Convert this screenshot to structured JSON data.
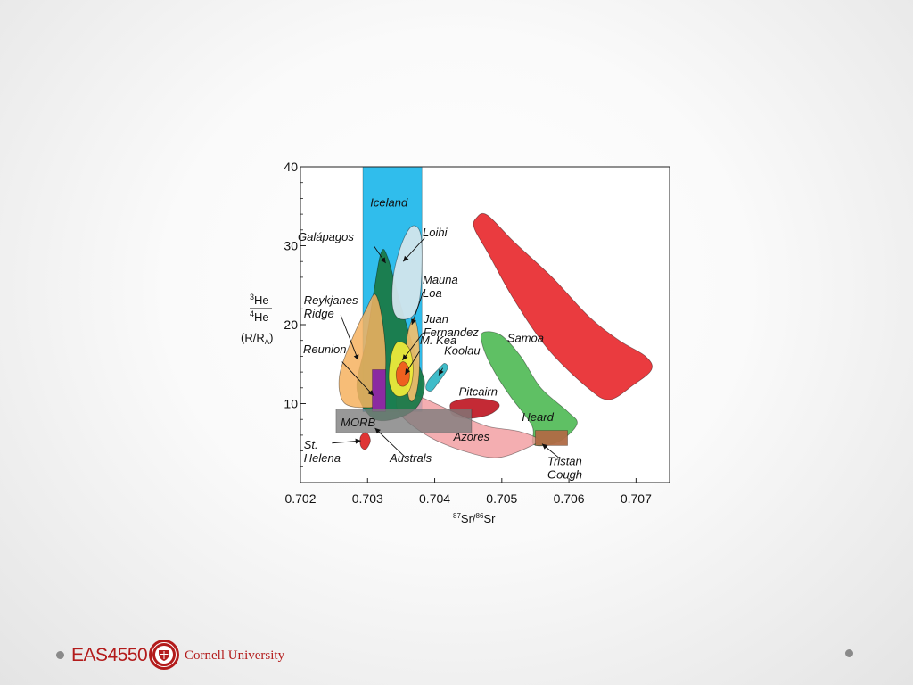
{
  "chart_data": {
    "type": "scatter",
    "title": "",
    "xlabel": "87Sr/86Sr",
    "xlabel_parts": {
      "sup1": "87",
      "base1": "Sr/",
      "sup2": "86",
      "base2": "Sr"
    },
    "ylabel_parts": {
      "num_sup": "3",
      "num": "He",
      "den_sup": "4",
      "den": "He",
      "unit": "(R/R",
      "unit_sub": "A",
      "unit_end": ")"
    },
    "xlim": [
      0.702,
      0.7075
    ],
    "ylim": [
      0,
      40
    ],
    "x_ticks": [
      {
        "value": 0.702,
        "label": "0.702"
      },
      {
        "value": 0.703,
        "label": "0.703"
      },
      {
        "value": 0.704,
        "label": "0.704"
      },
      {
        "value": 0.705,
        "label": "0.705"
      },
      {
        "value": 0.706,
        "label": "0.706"
      },
      {
        "value": 0.707,
        "label": "0.707"
      }
    ],
    "y_ticks": [
      {
        "value": 10,
        "label": "10"
      },
      {
        "value": 20,
        "label": "20"
      },
      {
        "value": 30,
        "label": "30"
      },
      {
        "value": 40,
        "label": "40"
      }
    ],
    "fields": [
      {
        "name": "Iceland",
        "shape": "rect",
        "color": "#1ab6ea",
        "opacity": 0.9,
        "x": [
          0.70293,
          0.70381
        ],
        "y": [
          9,
          40
        ],
        "label_pos": [
          0.70304,
          35
        ]
      },
      {
        "name": "Samoa",
        "shape": "poly",
        "color": "#e8262a",
        "opacity": 0.9,
        "label_pos": [
          0.70508,
          17.8
        ],
        "points": [
          [
            0.70462,
            33.5
          ],
          [
            0.70478,
            33.9
          ],
          [
            0.70518,
            30.5
          ],
          [
            0.70575,
            26
          ],
          [
            0.7063,
            21
          ],
          [
            0.70675,
            18
          ],
          [
            0.70714,
            16
          ],
          [
            0.70723,
            14.3
          ],
          [
            0.70695,
            12.3
          ],
          [
            0.7066,
            10.5
          ],
          [
            0.70628,
            12
          ],
          [
            0.70568,
            17
          ],
          [
            0.70518,
            23.2
          ],
          [
            0.7048,
            29
          ],
          [
            0.70459,
            32.2
          ]
        ]
      },
      {
        "name": "Heard",
        "shape": "poly",
        "color": "#43b549",
        "opacity": 0.85,
        "label_pos": [
          0.7053,
          7.8
        ],
        "points": [
          [
            0.70472,
            19
          ],
          [
            0.70498,
            18.7
          ],
          [
            0.70528,
            16
          ],
          [
            0.70558,
            12
          ],
          [
            0.70598,
            9
          ],
          [
            0.70612,
            7.4
          ],
          [
            0.70585,
            5.2
          ],
          [
            0.70548,
            4.8
          ],
          [
            0.70545,
            7.2
          ],
          [
            0.70512,
            11
          ],
          [
            0.70486,
            14.5
          ],
          [
            0.70471,
            17.5
          ]
        ]
      },
      {
        "name": "Pitcairn",
        "shape": "poly",
        "color": "#c11f2a",
        "opacity": 0.95,
        "label_pos": [
          0.70436,
          11
        ],
        "points": [
          [
            0.70427,
            10.2
          ],
          [
            0.70455,
            10.7
          ],
          [
            0.70489,
            10.3
          ],
          [
            0.70496,
            9.6
          ],
          [
            0.70481,
            8.6
          ],
          [
            0.7045,
            8.1
          ],
          [
            0.70428,
            8.5
          ],
          [
            0.70423,
            9.4
          ]
        ]
      },
      {
        "name": "Azores",
        "shape": "poly",
        "color": "#f19a9e",
        "opacity": 0.8,
        "label_pos": [
          0.70428,
          5.3
        ],
        "points": [
          [
            0.70355,
            11.6
          ],
          [
            0.70383,
            10.7
          ],
          [
            0.70442,
            8.4
          ],
          [
            0.7048,
            7.1
          ],
          [
            0.70525,
            6.5
          ],
          [
            0.70554,
            5.5
          ],
          [
            0.70545,
            4.7
          ],
          [
            0.70498,
            3.2
          ],
          [
            0.70455,
            3.7
          ],
          [
            0.70396,
            5.6
          ],
          [
            0.7035,
            8.5
          ],
          [
            0.70343,
            10.8
          ]
        ]
      },
      {
        "name": "Koolau",
        "shape": "poly",
        "color": "#2ab5c3",
        "opacity": 0.9,
        "label_pos": [
          0.70414,
          16.2
        ],
        "points": [
          [
            0.70408,
            14.6
          ],
          [
            0.70415,
            15.1
          ],
          [
            0.70419,
            14.4
          ],
          [
            0.70404,
            12.5
          ],
          [
            0.70395,
            11.6
          ],
          [
            0.70387,
            11.9
          ],
          [
            0.70391,
            13
          ]
        ]
      },
      {
        "name": "Galápagos",
        "shape": "poly",
        "color": "#1a7a48",
        "opacity": 0.95,
        "label_pos": [
          0.70196,
          30.6
        ],
        "points": [
          [
            0.7032,
            29.1
          ],
          [
            0.7033,
            28.5
          ],
          [
            0.70351,
            22
          ],
          [
            0.70374,
            15.5
          ],
          [
            0.70385,
            12.5
          ],
          [
            0.70373,
            9.5
          ],
          [
            0.70338,
            8
          ],
          [
            0.70305,
            8.3
          ],
          [
            0.70284,
            12
          ],
          [
            0.70298,
            18
          ],
          [
            0.70309,
            24
          ]
        ]
      },
      {
        "name": "Loihi",
        "shape": "poly",
        "color": "#d2e5ec",
        "opacity": 0.95,
        "label_pos": [
          0.70382,
          31.2
        ],
        "points": [
          [
            0.70367,
            32.5
          ],
          [
            0.70379,
            31.5
          ],
          [
            0.70381,
            27.5
          ],
          [
            0.70377,
            23
          ],
          [
            0.70366,
            21
          ],
          [
            0.70346,
            20.8
          ],
          [
            0.70337,
            22.5
          ],
          [
            0.70339,
            26.5
          ],
          [
            0.70352,
            30.5
          ]
        ]
      },
      {
        "name": "Reykjanes Ridge",
        "shape": "poly",
        "color": "#f6b25f",
        "opacity": 0.85,
        "label_pos": [
          0.70205,
          22.6
        ],
        "label_lines": [
          "Reykjanes",
          "Ridge"
        ],
        "points": [
          [
            0.70312,
            23.8
          ],
          [
            0.70323,
            20
          ],
          [
            0.70327,
            14.5
          ],
          [
            0.70318,
            10.2
          ],
          [
            0.70294,
            9.5
          ],
          [
            0.70264,
            10.2
          ],
          [
            0.70258,
            13.5
          ],
          [
            0.70276,
            18
          ],
          [
            0.70298,
            22
          ]
        ]
      },
      {
        "name": "Mauna Loa",
        "shape": "poly",
        "color": "#f6bf6a",
        "opacity": 0.9,
        "label_pos": [
          0.70382,
          25.2
        ],
        "label_lines": [
          "Mauna",
          "Loa"
        ],
        "points": [
          [
            0.70369,
            20.8
          ],
          [
            0.70376,
            18.5
          ],
          [
            0.70377,
            14
          ],
          [
            0.70371,
            10.8
          ],
          [
            0.70362,
            10.6
          ],
          [
            0.70357,
            14
          ],
          [
            0.70359,
            18.5
          ]
        ]
      },
      {
        "name": "Juan Fernandez",
        "shape": "poly",
        "color": "#ecea3a",
        "opacity": 0.95,
        "label_pos": [
          0.70383,
          20.2
        ],
        "label_lines": [
          "Juan",
          "Fernandez"
        ],
        "points": [
          [
            0.70345,
            17.8
          ],
          [
            0.70362,
            17
          ],
          [
            0.70368,
            14.2
          ],
          [
            0.70361,
            11.5
          ],
          [
            0.70343,
            11
          ],
          [
            0.70332,
            12.8
          ],
          [
            0.70335,
            16
          ]
        ]
      },
      {
        "name": "M. Kea",
        "shape": "poly",
        "color": "#ef5a1e",
        "opacity": 0.95,
        "label_pos": [
          0.70378,
          17.5
        ],
        "points": [
          [
            0.70352,
            15.3
          ],
          [
            0.70361,
            14.6
          ],
          [
            0.70362,
            13
          ],
          [
            0.70354,
            12.2
          ],
          [
            0.70345,
            12.6
          ],
          [
            0.70343,
            14.1
          ]
        ]
      },
      {
        "name": "Reunion",
        "shape": "rect",
        "color": "#8b2aa1",
        "opacity": 1,
        "x": [
          0.70307,
          0.70327
        ],
        "y": [
          9,
          14.3
        ],
        "label_pos": [
          0.70204,
          16.4
        ]
      },
      {
        "name": "MORB",
        "shape": "rect",
        "color": "#7b7b7b",
        "opacity": 0.78,
        "x": [
          0.70253,
          0.70455
        ],
        "y": [
          6.3,
          9.3
        ],
        "label_pos": [
          0.7026,
          7.1
        ]
      },
      {
        "name": "Tristan Gough",
        "shape": "rect",
        "color": "#b06a45",
        "opacity": 0.95,
        "x": [
          0.7055,
          0.70598
        ],
        "y": [
          4.7,
          6.6
        ],
        "label_pos": [
          0.70568,
          2.2
        ],
        "label_lines": [
          "Tristan",
          "Gough"
        ]
      },
      {
        "name": "St. Helena",
        "shape": "poly",
        "color": "#dd2a2a",
        "opacity": 0.95,
        "label_pos": [
          0.70205,
          4.3
        ],
        "label_lines": [
          "St.",
          "Helena"
        ],
        "points": [
          [
            0.70295,
            6.3
          ],
          [
            0.70301,
            6.1
          ],
          [
            0.70304,
            5.2
          ],
          [
            0.70297,
            4.2
          ],
          [
            0.7029,
            4.6
          ],
          [
            0.70289,
            5.7
          ]
        ]
      },
      {
        "name": "Australs",
        "shape": "label",
        "label_pos": [
          0.70333,
          2.6
        ]
      }
    ],
    "pointers": [
      {
        "name": "Galápagos",
        "from": [
          0.7031,
          29.9
        ],
        "to": [
          0.70327,
          27.8
        ]
      },
      {
        "name": "Loihi",
        "from": [
          0.70385,
          31.0
        ],
        "to": [
          0.70353,
          28.0
        ]
      },
      {
        "name": "Reykjanes Ridge",
        "from": [
          0.7026,
          21.2
        ],
        "to": [
          0.70286,
          15.5
        ]
      },
      {
        "name": "Mauna Loa",
        "from": [
          0.70383,
          24.2
        ],
        "to": [
          0.70366,
          20.0
        ]
      },
      {
        "name": "Juan Fernandez",
        "from": [
          0.70383,
          19.0
        ],
        "to": [
          0.70352,
          15.5
        ]
      },
      {
        "name": "M. Kea",
        "from": [
          0.70378,
          16.7
        ],
        "to": [
          0.70356,
          13.7
        ]
      },
      {
        "name": "Koolau",
        "from": [
          0.70412,
          14.5
        ],
        "to": [
          0.70406,
          13.6
        ]
      },
      {
        "name": "Reunion",
        "from": [
          0.70262,
          15.3
        ],
        "to": [
          0.70309,
          11.0
        ]
      },
      {
        "name": "St. Helena",
        "from": [
          0.70247,
          5.0
        ],
        "to": [
          0.7029,
          5.3
        ]
      },
      {
        "name": "Australs",
        "from": [
          0.70355,
          3.3
        ],
        "to": [
          0.70311,
          6.9
        ]
      },
      {
        "name": "Tristan Gough",
        "from": [
          0.70587,
          3.0
        ],
        "to": [
          0.7056,
          4.9
        ]
      }
    ]
  },
  "footer": {
    "course": "EAS4550",
    "university": "Cornell University",
    "seal_text": "CORNELL"
  }
}
